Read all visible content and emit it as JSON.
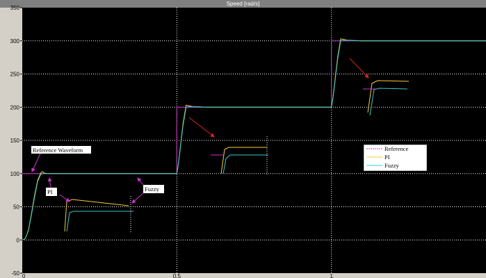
{
  "window": {
    "title": "Speed [rad/s]"
  },
  "chart_data": {
    "type": "line",
    "title": "Speed [rad/s]",
    "xlabel": "",
    "ylabel": "",
    "xlim": [
      0,
      1.5
    ],
    "ylim": [
      -50,
      350
    ],
    "xticks": [
      0,
      0.5,
      1
    ],
    "xtick_labels": [
      "0",
      "0.5",
      "1"
    ],
    "yticks": [
      -50,
      0,
      50,
      100,
      150,
      200,
      250,
      300,
      350
    ],
    "ytick_labels": [
      "-50",
      "0",
      "50",
      "100",
      "150",
      "200",
      "250",
      "300",
      "350"
    ],
    "grid": true,
    "background": "#000000",
    "legend_position": "right",
    "series": [
      {
        "name": "Reference",
        "color": "#cc33cc",
        "x": [
          0,
          0.5,
          0.5,
          1.0,
          1.0,
          1.5
        ],
        "y": [
          100,
          100,
          200,
          200,
          300,
          300
        ]
      },
      {
        "name": "PI",
        "color": "#ffcc33",
        "x": [
          0,
          0.01,
          0.02,
          0.03,
          0.04,
          0.05,
          0.06,
          0.065,
          0.07,
          0.08,
          0.1,
          0.2,
          0.5,
          0.505,
          0.52,
          0.53,
          0.54,
          0.55,
          0.6,
          1.0,
          1.005,
          1.02,
          1.03,
          1.04,
          1.05,
          1.1,
          1.5
        ],
        "y": [
          0,
          2,
          15,
          40,
          68,
          90,
          101,
          103,
          101,
          100,
          100,
          100,
          100,
          115,
          175,
          203,
          202,
          201,
          200,
          200,
          215,
          275,
          303,
          302,
          301,
          300,
          300
        ]
      },
      {
        "name": "Fuzzy",
        "color": "#33cccc",
        "x": [
          0,
          0.01,
          0.02,
          0.03,
          0.04,
          0.05,
          0.06,
          0.07,
          0.08,
          0.1,
          0.2,
          0.5,
          0.505,
          0.52,
          0.53,
          0.54,
          0.6,
          1.0,
          1.005,
          1.02,
          1.03,
          1.04,
          1.1,
          1.5
        ],
        "y": [
          0,
          2,
          14,
          38,
          65,
          88,
          99,
          100,
          100,
          100,
          100,
          100,
          114,
          172,
          200,
          201,
          200,
          200,
          213,
          272,
          300,
          301,
          300,
          300
        ]
      }
    ],
    "legend": [
      {
        "label": "Reference",
        "color": "#cc33cc",
        "style": "dashed"
      },
      {
        "label": "PI",
        "color": "#ffcc33",
        "style": "solid"
      },
      {
        "label": "Fuzzy",
        "color": "#33cccc",
        "style": "solid"
      }
    ],
    "annotations": [
      {
        "text": "Reference Waveform"
      },
      {
        "text": "PI"
      },
      {
        "text": "Fuzzy"
      }
    ]
  }
}
